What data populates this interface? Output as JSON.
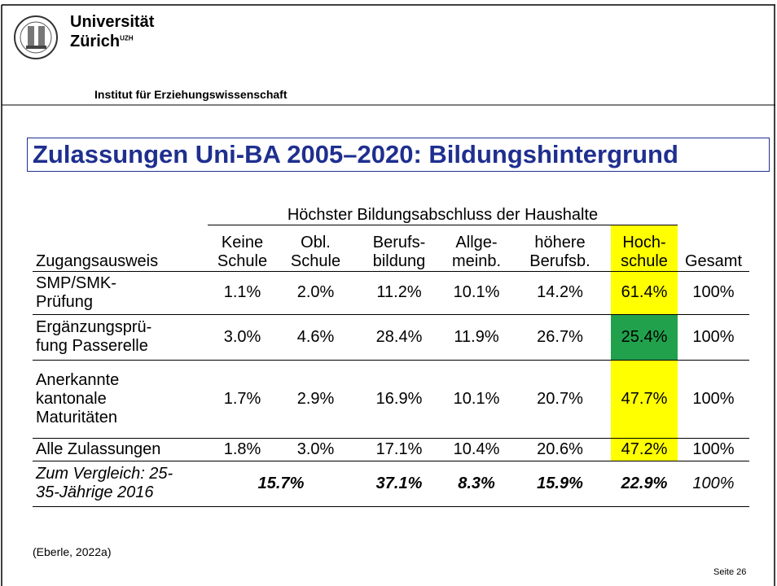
{
  "header": {
    "university": "Universität",
    "city": "Zürich",
    "city_sup": "UZH",
    "institute": "Institut für Erziehungswissenschaft"
  },
  "title": "Zulassungen Uni-BA 2005–2020: Bildungshintergrund",
  "table": {
    "group_header": "Höchster Bildungsabschluss der Haushalte",
    "columns": [
      "Zugangsausweis",
      "Keine\nSchule",
      "Obl.\nSchule",
      "Berufs-\nbildung",
      "Allge-\nmeinb.",
      "höhere\nBerufsb.",
      "Hoch-\nschule",
      "Gesamt"
    ],
    "rows": [
      [
        "SMP/SMK-\nPrüfung",
        "1.1%",
        "2.0%",
        "11.2%",
        "10.1%",
        "14.2%",
        "61.4%",
        "100%"
      ],
      [
        "Ergänzungsprü-\nfung Passerelle",
        "3.0%",
        "4.6%",
        "28.4%",
        "11.9%",
        "26.7%",
        "25.4%",
        "100%"
      ],
      [
        "Anerkannte\nkantonale\nMaturitäten",
        "1.7%",
        "2.9%",
        "16.9%",
        "10.1%",
        "20.7%",
        "47.7%",
        "100%"
      ],
      [
        "Alle Zulassungen",
        "1.8%",
        "3.0%",
        "17.1%",
        "10.4%",
        "20.6%",
        "47.2%",
        "100%"
      ],
      [
        "Zum Vergleich: 25-\n35-Jährige 2016",
        "15.7%",
        "37.1%",
        "8.3%",
        "15.9%",
        "22.9%",
        "100%"
      ]
    ]
  },
  "source": "(Eberle, 2022a)",
  "page": "Seite 26"
}
